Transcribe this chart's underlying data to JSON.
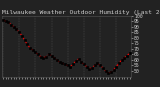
{
  "title": "Milwaukee Weather Outdoor Humidity (Last 24 Hours)",
  "bg_color": "#222222",
  "plot_bg_color": "#222222",
  "line_color": "#ff0000",
  "marker_color": "#000000",
  "grid_color": "#666666",
  "text_color": "#cccccc",
  "y_values": [
    96,
    95,
    94,
    92,
    90,
    88,
    85,
    82,
    78,
    74,
    71,
    69,
    67,
    65,
    63,
    62,
    63,
    65,
    64,
    62,
    60,
    58,
    57,
    56,
    55,
    54,
    56,
    59,
    61,
    58,
    56,
    54,
    52,
    53,
    55,
    57,
    55,
    53,
    50,
    48,
    49,
    51,
    54,
    57,
    60,
    62,
    64,
    66
  ],
  "ylim": [
    45,
    100
  ],
  "yticks": [
    50,
    55,
    60,
    65,
    70,
    75,
    80,
    85,
    90,
    95,
    100
  ],
  "ytick_labels": [
    "50",
    "55",
    "60",
    "65",
    "70",
    "75",
    "80",
    "85",
    "90",
    "95",
    "100"
  ],
  "num_points": 48,
  "vgrid_interval": 6,
  "title_fontsize": 4.5,
  "tick_fontsize": 3.5,
  "line_width": 0.7,
  "marker_size": 1.8
}
